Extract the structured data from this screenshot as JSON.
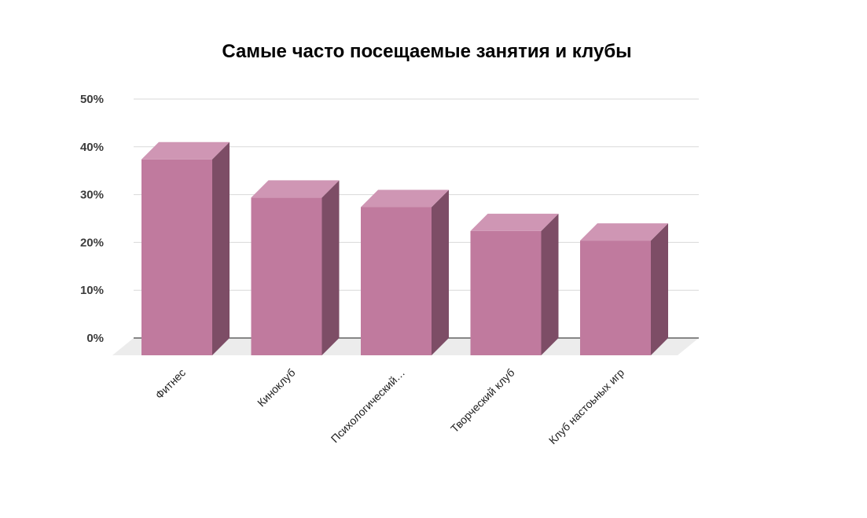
{
  "chart_data": {
    "type": "bar",
    "style": "3d",
    "title": "Самые часто посещаемые занятия и клубы",
    "xlabel": "",
    "ylabel": "",
    "categories": [
      "Фитнес",
      "Киноклуб",
      "Психологический…",
      "Творческий клуб",
      "Клуб настоьных игр"
    ],
    "values": [
      0.41,
      0.33,
      0.31,
      0.26,
      0.24
    ],
    "ylim": [
      0,
      0.5
    ],
    "yticks": [
      0,
      0.1,
      0.2,
      0.3,
      0.4,
      0.5
    ],
    "ytick_labels": [
      "0%",
      "10%",
      "20%",
      "30%",
      "40%",
      "50%"
    ],
    "grid": true,
    "legend": "none",
    "colors": {
      "bar_front": "#c07a9e",
      "bar_top": "#cf96b4",
      "bar_side": "#7d4d66",
      "floor": "#ececec",
      "grid": "#d9d9d9"
    }
  }
}
